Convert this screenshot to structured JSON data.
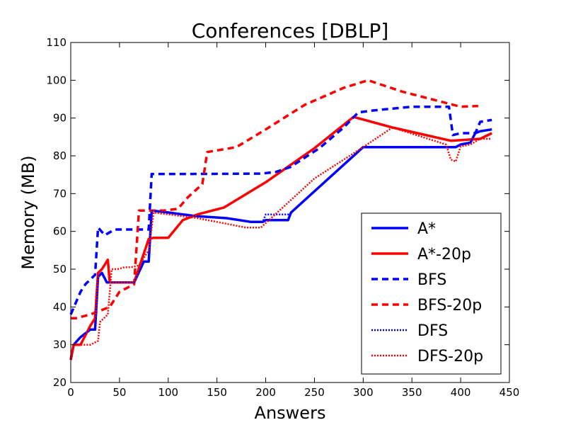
{
  "chart_data": {
    "type": "line",
    "title": "Conferences [DBLP]",
    "xlabel": "Answers",
    "ylabel": "Memory (MB)",
    "xlim": [
      0,
      450
    ],
    "ylim": [
      20,
      110
    ],
    "xticks": [
      "0",
      "50",
      "100",
      "150",
      "200",
      "250",
      "300",
      "350",
      "400",
      "450"
    ],
    "yticks": [
      "20",
      "30",
      "40",
      "50",
      "60",
      "70",
      "80",
      "90",
      "100",
      "110"
    ],
    "legend_position": "lower-right",
    "grid": false,
    "series": [
      {
        "name": "A*",
        "color": "#0000ff",
        "style": "solid",
        "x": [
          0,
          3,
          10,
          20,
          25,
          28,
          32,
          37,
          45,
          55,
          65,
          75,
          80,
          83,
          100,
          130,
          160,
          185,
          197,
          200,
          210,
          223,
          226,
          300,
          395,
          400,
          410,
          415,
          420,
          432
        ],
        "y": [
          26,
          30,
          32,
          34,
          34,
          48,
          49,
          46.5,
          46.5,
          46.5,
          46.5,
          52,
          52,
          65.5,
          65,
          64,
          63.5,
          62.5,
          62.5,
          63,
          63,
          63,
          65,
          82.3,
          82.3,
          83,
          83.5,
          86,
          86.5,
          87
        ]
      },
      {
        "name": "A*-20p",
        "color": "#ff0000",
        "style": "solid",
        "x": [
          0,
          3,
          10,
          20,
          25,
          28,
          32,
          38,
          40,
          50,
          65,
          80,
          85,
          100,
          115,
          130,
          157,
          200,
          250,
          290,
          330,
          390,
          420,
          432
        ],
        "y": [
          26,
          30,
          30,
          35,
          37,
          49,
          50,
          52.5,
          46.5,
          46.5,
          46.5,
          58,
          58.3,
          58.3,
          63,
          64.5,
          66.3,
          73,
          82,
          90.3,
          87.5,
          84,
          84.5,
          86
        ]
      },
      {
        "name": "BFS",
        "color": "#0000ff",
        "style": "dashed",
        "x": [
          0,
          10,
          15,
          25,
          28,
          35,
          45,
          70,
          80,
          83,
          120,
          195,
          210,
          225,
          255,
          280,
          295,
          310,
          350,
          388,
          392,
          400,
          415,
          420,
          432
        ],
        "y": [
          38,
          44,
          46,
          48.5,
          61,
          59,
          60.5,
          60.5,
          60.5,
          75.2,
          75.2,
          75.3,
          75.7,
          77,
          82,
          87.5,
          91.5,
          92,
          93,
          93,
          85.5,
          86,
          86,
          89,
          89.5
        ]
      },
      {
        "name": "BFS-20p",
        "color": "#ff0000",
        "style": "dashed",
        "x": [
          0,
          5,
          20,
          30,
          40,
          50,
          65,
          70,
          75,
          95,
          110,
          120,
          135,
          140,
          170,
          200,
          240,
          280,
          305,
          340,
          385,
          400,
          418
        ],
        "y": [
          37,
          37,
          38,
          39,
          40,
          44,
          46,
          65.5,
          65.5,
          65.5,
          66,
          69,
          72.5,
          81,
          82.3,
          87,
          93.5,
          98,
          100,
          97,
          94,
          93,
          93.2
        ]
      },
      {
        "name": "DFS",
        "color": "#0000ff",
        "style": "dotted",
        "x": [
          0,
          3,
          10,
          20,
          25,
          28,
          32,
          37,
          45,
          55,
          65,
          75,
          80,
          83,
          100,
          130,
          160,
          185,
          197,
          200,
          210,
          223,
          226,
          300,
          395,
          400,
          410,
          415,
          420,
          432
        ],
        "y": [
          26,
          30,
          32,
          34,
          34,
          48,
          49,
          46.5,
          46.5,
          46.5,
          46.5,
          52,
          52,
          65.5,
          65,
          64,
          63.5,
          62.5,
          62.5,
          64.5,
          64.5,
          64.5,
          65,
          82.3,
          82.3,
          83,
          83.5,
          86,
          86.5,
          87
        ]
      },
      {
        "name": "DFS-20p",
        "color": "#ff0000",
        "style": "dotted",
        "x": [
          0,
          3,
          20,
          28,
          30,
          38,
          42,
          48,
          55,
          62,
          70,
          80,
          85,
          130,
          180,
          195,
          250,
          300,
          330,
          385,
          390,
          395,
          400,
          410,
          420,
          432
        ],
        "y": [
          26,
          30,
          30,
          31,
          36,
          38,
          50,
          50,
          50.5,
          50.5,
          51,
          55,
          65,
          63.5,
          61,
          61,
          74,
          82.3,
          87.5,
          83,
          79,
          78.5,
          82.5,
          83,
          84.5,
          84.5
        ]
      }
    ]
  }
}
